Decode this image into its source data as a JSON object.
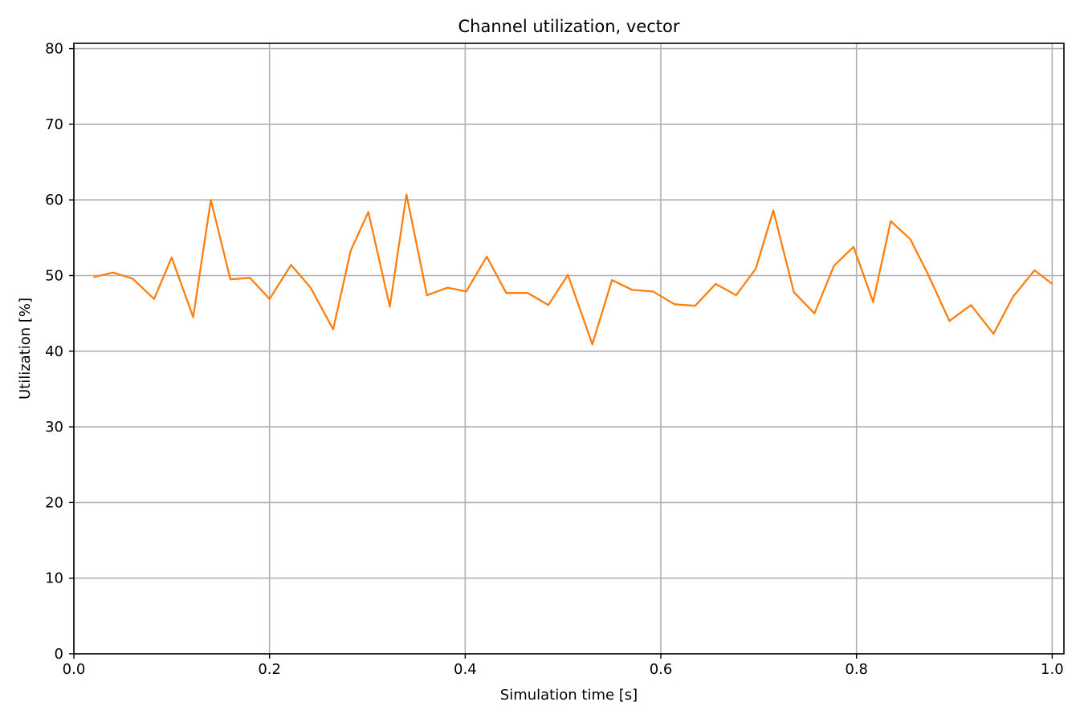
{
  "chart_data": {
    "type": "line",
    "title": "Channel utilization, vector",
    "xlabel": "Simulation time [s]",
    "ylabel": "Utilization [%]",
    "xlim": [
      0,
      1.012
    ],
    "ylim": [
      0,
      80.7
    ],
    "x_ticks": [
      0.0,
      0.2,
      0.4,
      0.6,
      0.8,
      1.0
    ],
    "x_tick_labels": [
      "0.0",
      "0.2",
      "0.4",
      "0.6",
      "0.8",
      "1.0"
    ],
    "y_ticks": [
      0,
      10,
      20,
      30,
      40,
      50,
      60,
      70,
      80
    ],
    "y_tick_labels": [
      "0",
      "10",
      "20",
      "30",
      "40",
      "50",
      "60",
      "70",
      "80"
    ],
    "grid": true,
    "series": [
      {
        "color": "#ff7f0e",
        "x": [
          0.02,
          0.04,
          0.06,
          0.082,
          0.1,
          0.122,
          0.14,
          0.16,
          0.18,
          0.2,
          0.222,
          0.242,
          0.265,
          0.283,
          0.301,
          0.323,
          0.34,
          0.361,
          0.382,
          0.401,
          0.422,
          0.442,
          0.464,
          0.485,
          0.505,
          0.53,
          0.55,
          0.571,
          0.592,
          0.614,
          0.635,
          0.656,
          0.677,
          0.697,
          0.715,
          0.736,
          0.757,
          0.777,
          0.797,
          0.817,
          0.835,
          0.855,
          0.873,
          0.895,
          0.917,
          0.94,
          0.96,
          0.982,
          1.0
        ],
        "y": [
          49.8,
          50.4,
          49.6,
          46.9,
          52.4,
          44.5,
          60.0,
          49.5,
          49.7,
          46.9,
          51.4,
          48.4,
          42.9,
          53.3,
          58.4,
          45.9,
          60.7,
          47.4,
          48.4,
          47.9,
          52.5,
          47.7,
          47.7,
          46.1,
          50.1,
          40.9,
          49.4,
          48.1,
          47.9,
          46.2,
          46.0,
          48.9,
          47.4,
          50.9,
          58.6,
          47.8,
          45.0,
          51.3,
          53.8,
          46.5,
          57.2,
          54.8,
          50.2,
          44.0,
          46.1,
          42.3,
          47.2,
          50.7,
          48.9
        ]
      }
    ]
  }
}
